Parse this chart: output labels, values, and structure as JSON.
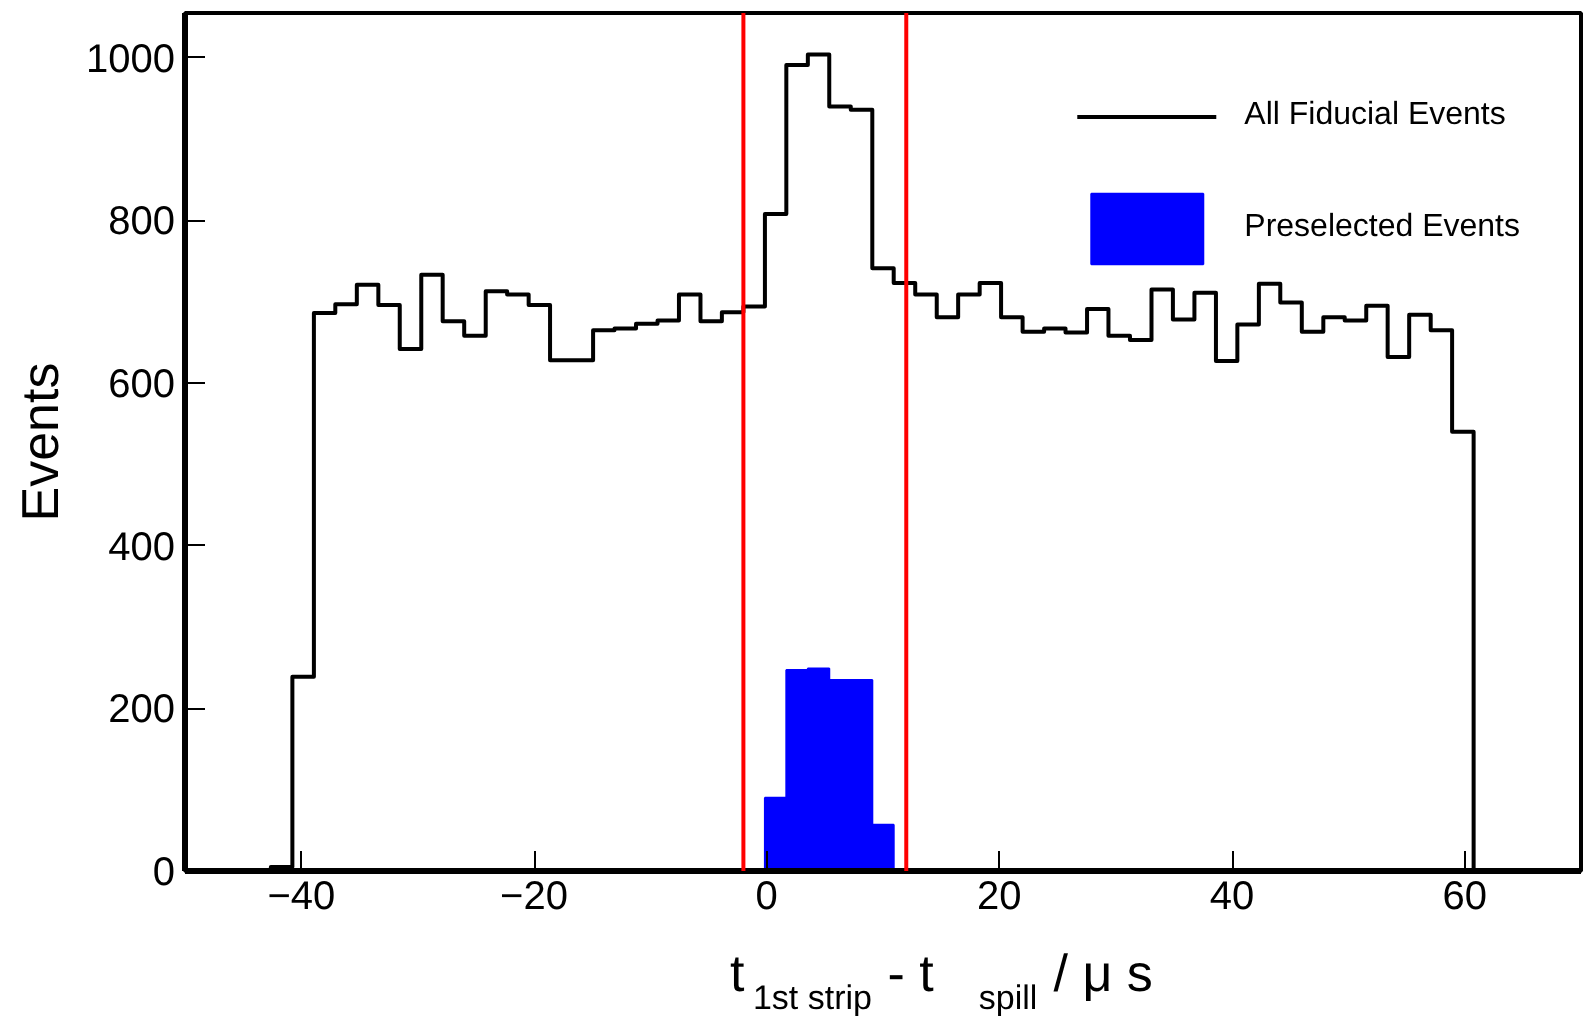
{
  "chart_data": {
    "type": "histogram",
    "xlabel": "t$_{1st strip}$ - t$_{spill}$ / μ s",
    "ylabel": "Events",
    "bins": [
      -50,
      -48.15,
      -46.31,
      -44.46,
      -42.62,
      -40.77,
      -38.92,
      -37.08,
      -35.23,
      -33.38,
      -31.54,
      -29.69,
      -27.85,
      -26.0,
      -24.15,
      -22.31,
      -20.46,
      -18.62,
      -16.77,
      -14.92,
      -13.08,
      -11.23,
      -9.38,
      -7.54,
      -5.69,
      -3.85,
      -2.0,
      -0.15,
      1.69,
      3.54,
      5.38,
      7.23,
      9.08,
      10.92,
      12.77,
      14.62,
      16.46,
      18.31,
      20.15,
      22.0,
      23.85,
      25.69,
      27.54,
      29.38,
      31.23,
      33.08,
      34.92,
      36.77,
      38.62,
      40.46,
      42.31,
      44.15,
      46.0,
      47.85,
      49.69,
      51.54,
      53.38,
      55.23,
      57.08,
      58.92,
      60.77,
      62.62,
      64.46,
      66.31,
      68.15,
      70
    ],
    "series": [
      {
        "name": "All Fiducial Events",
        "type": "step",
        "color": "#000000",
        "x": [
          -50,
          -48.15,
          -46.31,
          -44.46,
          -42.62,
          -40.77,
          -38.92,
          -37.08,
          -35.23,
          -33.38,
          -31.54,
          -29.69,
          -27.85,
          -26.0,
          -24.15,
          -22.31,
          -20.46,
          -18.62,
          -16.77,
          -14.92,
          -13.08,
          -11.23,
          -9.38,
          -7.54,
          -5.69,
          -3.85,
          -2.0,
          -0.15,
          1.69,
          3.54,
          5.38,
          7.23,
          9.08,
          10.92,
          12.77,
          14.62,
          16.46,
          18.31,
          20.15,
          22.0,
          23.85,
          25.69,
          27.54,
          29.38,
          31.23,
          33.08,
          34.92,
          36.77,
          38.62,
          40.46,
          42.31,
          44.15,
          46.0,
          47.85,
          49.69,
          51.54,
          53.38,
          55.23,
          57.08,
          58.92,
          60.77,
          62.62,
          64.46,
          66.31,
          68.15
        ],
        "values": [
          0,
          0,
          0,
          0,
          5,
          239,
          686,
          697,
          721,
          696,
          642,
          733,
          676,
          658,
          713,
          709,
          696,
          628,
          628,
          665,
          667,
          673,
          677,
          709,
          676,
          687,
          694,
          808,
          991,
          1004,
          940,
          936,
          741,
          723,
          709,
          681,
          709,
          723,
          681,
          663,
          667,
          662,
          691,
          658,
          653,
          715,
          678,
          711,
          627,
          672,
          722,
          699,
          663,
          681,
          677,
          695,
          632,
          684,
          665,
          540,
          0,
          0,
          0,
          0,
          0
        ]
      },
      {
        "name": "Preselected Events",
        "type": "histogram",
        "color": "#0000ff",
        "values": [
          0,
          0,
          0,
          0,
          0,
          0,
          0,
          0,
          0,
          0,
          0,
          0,
          0,
          0,
          0,
          0,
          0,
          0,
          0,
          0,
          0,
          0,
          0,
          0,
          0,
          0,
          0,
          90,
          247,
          249,
          235,
          235,
          57,
          0,
          0,
          0,
          0,
          0,
          0,
          0,
          0,
          0,
          0,
          0,
          0,
          0,
          0,
          0,
          0,
          0,
          0,
          0,
          0,
          0,
          0,
          0,
          0,
          0,
          0,
          0,
          0,
          0,
          0,
          0,
          0
        ]
      }
    ],
    "xlim": [
      -50,
      70
    ],
    "ylim": [
      0,
      1055
    ],
    "xticks": [
      -40,
      -20,
      0,
      20,
      40,
      60
    ],
    "yticks": [
      0,
      200,
      400,
      600,
      800,
      1000
    ],
    "ref_lines": [
      {
        "axis": "x",
        "value": -2,
        "color": "#ff0000"
      },
      {
        "axis": "x",
        "value": 12,
        "color": "#ff0000"
      }
    ],
    "legend": "top right"
  }
}
